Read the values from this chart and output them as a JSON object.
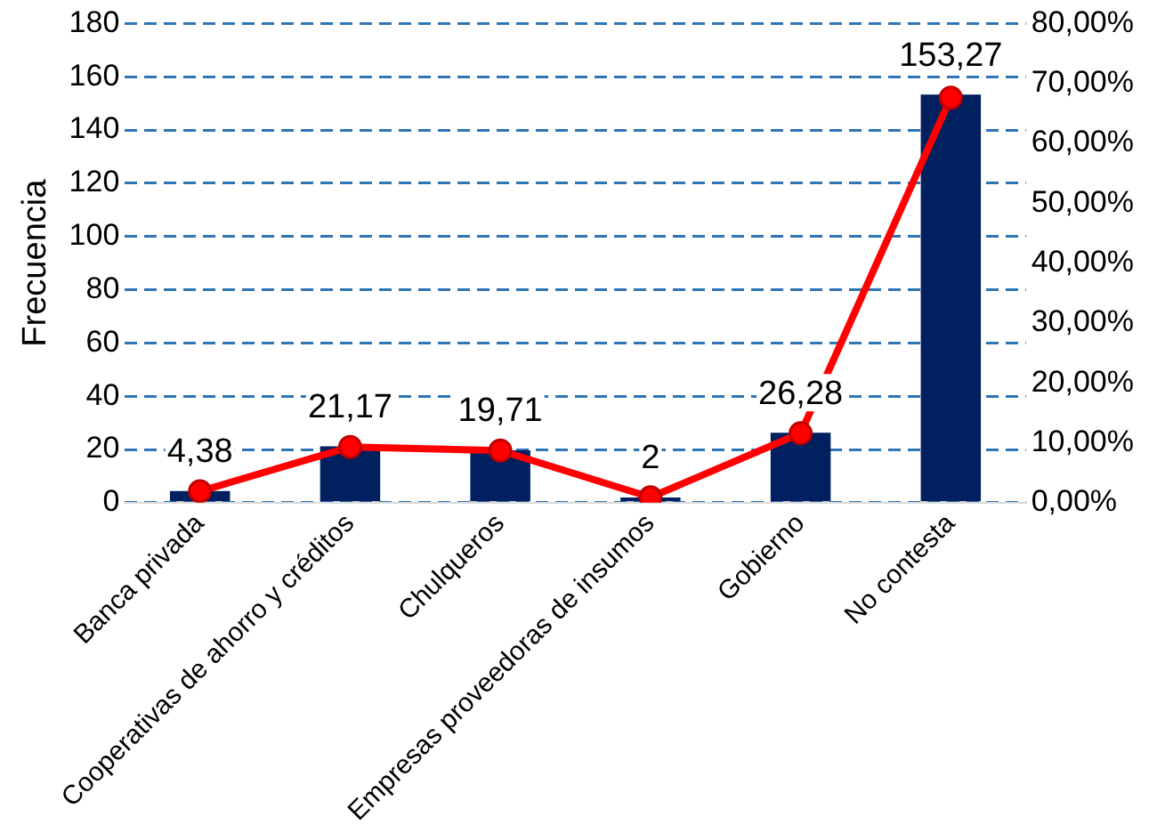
{
  "chart_data": {
    "type": "bar",
    "ylabel": "Frecuencia",
    "categories": [
      "Banca privada",
      "Cooperativas de ahorro y créditos",
      "Chulqueros",
      "Empresas proveedoras de insumos",
      "Gobierno",
      "No contesta"
    ],
    "series": [
      {
        "color": "#002060",
        "values": [
          4.38,
          21.17,
          19.71,
          2,
          26.28,
          153.27
        ],
        "value_labels": [
          "4,38",
          "21,17",
          "19,71",
          "2",
          "26,28",
          "153,27"
        ]
      },
      {
        "type": "line",
        "axis": "y2",
        "color": "#ff0000",
        "marker": "circle",
        "values": [
          1.9,
          9.3,
          8.7,
          0.9,
          11.6,
          67.6
        ]
      }
    ],
    "ylim": [
      0,
      180
    ],
    "yticks": [
      0,
      20,
      40,
      60,
      80,
      100,
      120,
      140,
      160,
      180
    ],
    "y2lim": [
      0,
      80
    ],
    "y2ticks": [
      {
        "value": 0,
        "label": "0,00%"
      },
      {
        "value": 10,
        "label": "10,00%"
      },
      {
        "value": 20,
        "label": "20,00%"
      },
      {
        "value": 30,
        "label": "30,00%"
      },
      {
        "value": 40,
        "label": "40,00%"
      },
      {
        "value": 50,
        "label": "50,00%"
      },
      {
        "value": 60,
        "label": "60,00%"
      },
      {
        "value": 70,
        "label": "70,00%"
      },
      {
        "value": 80,
        "label": "80,00%"
      }
    ],
    "grid": "y",
    "legend": false
  }
}
